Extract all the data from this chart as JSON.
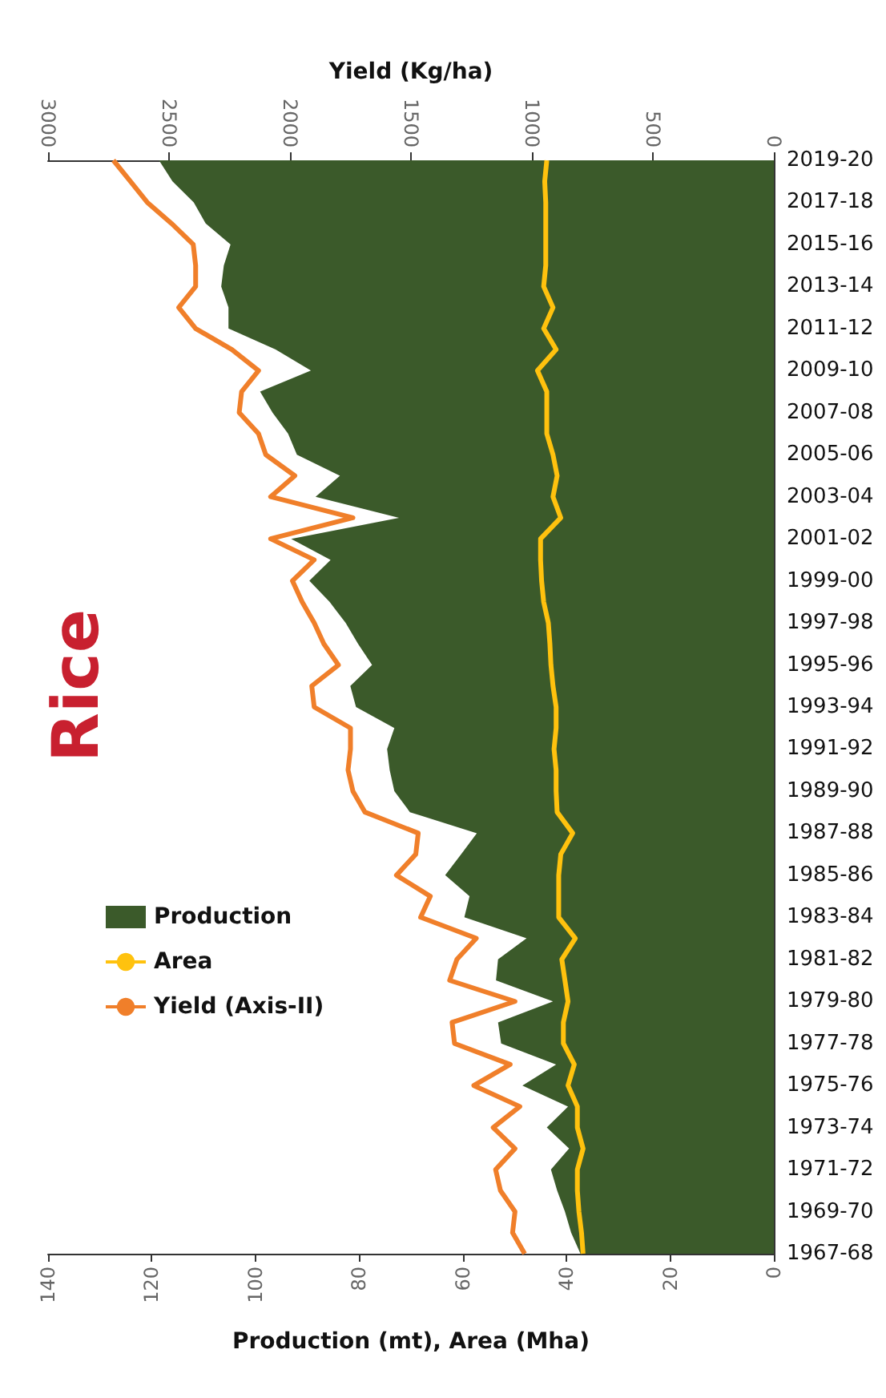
{
  "chart_data": {
    "type": "area",
    "orientation": "horizontal",
    "title": "Rice",
    "xlabel": "Production (mt), Area (Mha)",
    "x2label": "Yield (Kg/ha)",
    "legend": "left",
    "marker": "none",
    "categories": [
      "2019-20",
      null,
      "2017-18",
      null,
      "2015-16",
      null,
      "2013-14",
      null,
      "2011-12",
      null,
      "2009-10",
      null,
      "2007-08",
      null,
      "2005-06",
      null,
      "2003-04",
      null,
      "2001-02",
      null,
      "1999-00",
      null,
      "1997-98",
      null,
      "1995-96",
      null,
      "1993-94",
      null,
      "1991-92",
      null,
      "1989-90",
      null,
      "1987-88",
      null,
      "1985-86",
      null,
      "1983-84",
      null,
      "1981-82",
      null,
      "1979-80",
      null,
      "1977-78",
      null,
      "1975-76",
      null,
      "1973-74",
      null,
      "1971-72",
      null,
      "1969-70",
      null,
      "1967-68"
    ],
    "xlim": [
      140,
      0
    ],
    "xticks": [
      0,
      20,
      40,
      60,
      80,
      100,
      120,
      140
    ],
    "x2lim": [
      3000,
      0
    ],
    "x2ticks": [
      0,
      500,
      1000,
      1500,
      2000,
      2500,
      3000
    ],
    "series": [
      {
        "name": "Production",
        "color": "#3b5a2a",
        "values": [
          118.6,
          116.0,
          111.9,
          109.6,
          104.8,
          106.1,
          106.6,
          105.2,
          105.2,
          96.1,
          89.3,
          99.1,
          96.7,
          93.7,
          92.0,
          83.7,
          88.4,
          72.3,
          93.1,
          85.5,
          89.6,
          85.7,
          82.6,
          80.2,
          77.5,
          81.7,
          80.6,
          73.2,
          74.6,
          74.1,
          73.2,
          70.2,
          57.3,
          60.3,
          63.4,
          58.7,
          59.7,
          47.7,
          53.2,
          53.6,
          42.6,
          53.2,
          52.6,
          42.0,
          48.5,
          39.7,
          43.8,
          39.5,
          43.0,
          41.8,
          40.3,
          39.1,
          37.3
        ]
      },
      {
        "name": "Area",
        "type": "line",
        "color": "#ffc20e",
        "values": [
          43.8,
          44.2,
          44.0,
          44.0,
          44.0,
          44.0,
          44.4,
          42.6,
          44.4,
          42.0,
          45.6,
          43.8,
          43.8,
          43.8,
          42.6,
          41.8,
          42.6,
          41.1,
          45.0,
          45.0,
          44.8,
          44.4,
          43.5,
          43.2,
          43.0,
          42.6,
          42.0,
          42.0,
          42.4,
          42.0,
          42.0,
          41.8,
          38.8,
          41.1,
          41.5,
          41.5,
          41.5,
          38.3,
          40.9,
          40.3,
          39.7,
          40.6,
          40.6,
          38.5,
          39.7,
          37.9,
          37.9,
          36.8,
          37.9,
          37.9,
          37.6,
          37.1,
          36.8
        ]
      },
      {
        "name": "Yield (Axis-II)",
        "type": "line",
        "axis": "x2",
        "color": "#f07f2a",
        "values": [
          2730,
          2660,
          2590,
          2490,
          2400,
          2390,
          2390,
          2460,
          2390,
          2240,
          2130,
          2200,
          2210,
          2130,
          2100,
          1980,
          2080,
          1740,
          2080,
          1900,
          1990,
          1950,
          1900,
          1860,
          1800,
          1910,
          1900,
          1750,
          1750,
          1760,
          1740,
          1690,
          1470,
          1480,
          1560,
          1420,
          1460,
          1230,
          1310,
          1340,
          1070,
          1330,
          1320,
          1090,
          1240,
          1050,
          1160,
          1070,
          1150,
          1130,
          1070,
          1080,
          1030
        ]
      }
    ]
  }
}
